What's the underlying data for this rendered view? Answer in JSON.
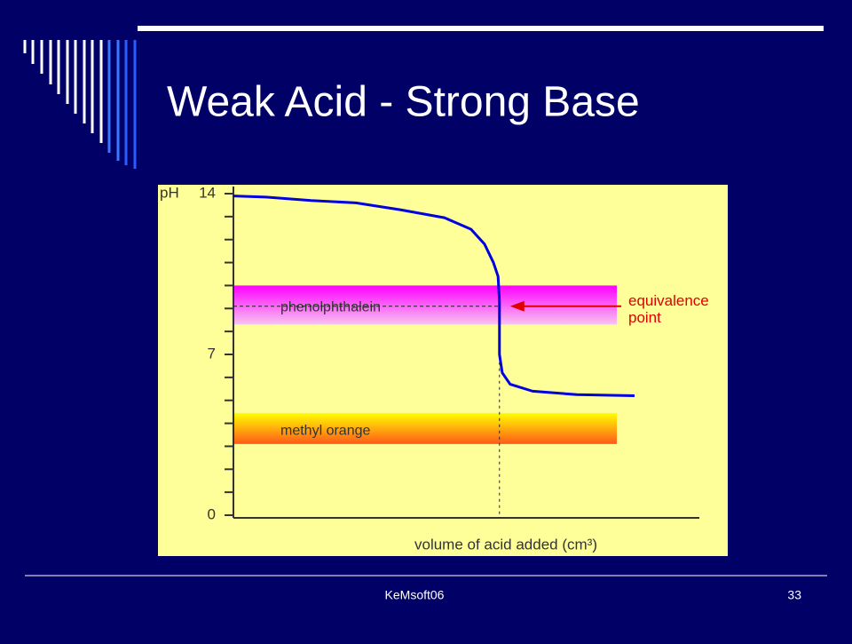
{
  "slide": {
    "title": "Weak Acid - Strong Base",
    "footer": "KeMsoft06",
    "page_number": 33
  },
  "chart_data": {
    "type": "line",
    "y_label": "pH",
    "x_label": "volume of acid added (cm³)",
    "ylim": [
      0,
      14
    ],
    "yticks": [
      0,
      7,
      14
    ],
    "minor_yticks": [
      1,
      2,
      3,
      4,
      5,
      6,
      8,
      9,
      10,
      11,
      12,
      13
    ],
    "xlim": [
      0,
      100
    ],
    "series": [
      {
        "color": "#0000e0",
        "x": [
          0,
          7,
          16.7,
          26.3,
          35.8,
          45.3,
          51,
          53.9,
          55.8,
          56.8,
          57.1,
          57.1,
          57.7,
          59.4,
          64.2,
          73.7,
          86.1
        ],
        "values": [
          13.9,
          13.85,
          13.7,
          13.6,
          13.3,
          12.95,
          12.45,
          11.8,
          11.0,
          10.4,
          9.3,
          7.0,
          6.2,
          5.7,
          5.4,
          5.25,
          5.2
        ]
      }
    ],
    "bands": [
      {
        "name": "phenolphthalein",
        "range": [
          8.3,
          10.0
        ],
        "x_range": [
          0,
          82.3
        ],
        "colors": [
          "#ff00ff",
          "#f6c4f0"
        ]
      },
      {
        "name": "methyl orange",
        "range": [
          3.1,
          4.45
        ],
        "x_range": [
          0,
          82.3
        ],
        "colors": [
          "#ffff00",
          "#ff5a1a"
        ]
      }
    ],
    "equivalence": {
      "x": 57.1,
      "y": 9.1,
      "label": [
        "equivalence",
        "point"
      ],
      "color": "#e00000"
    }
  }
}
